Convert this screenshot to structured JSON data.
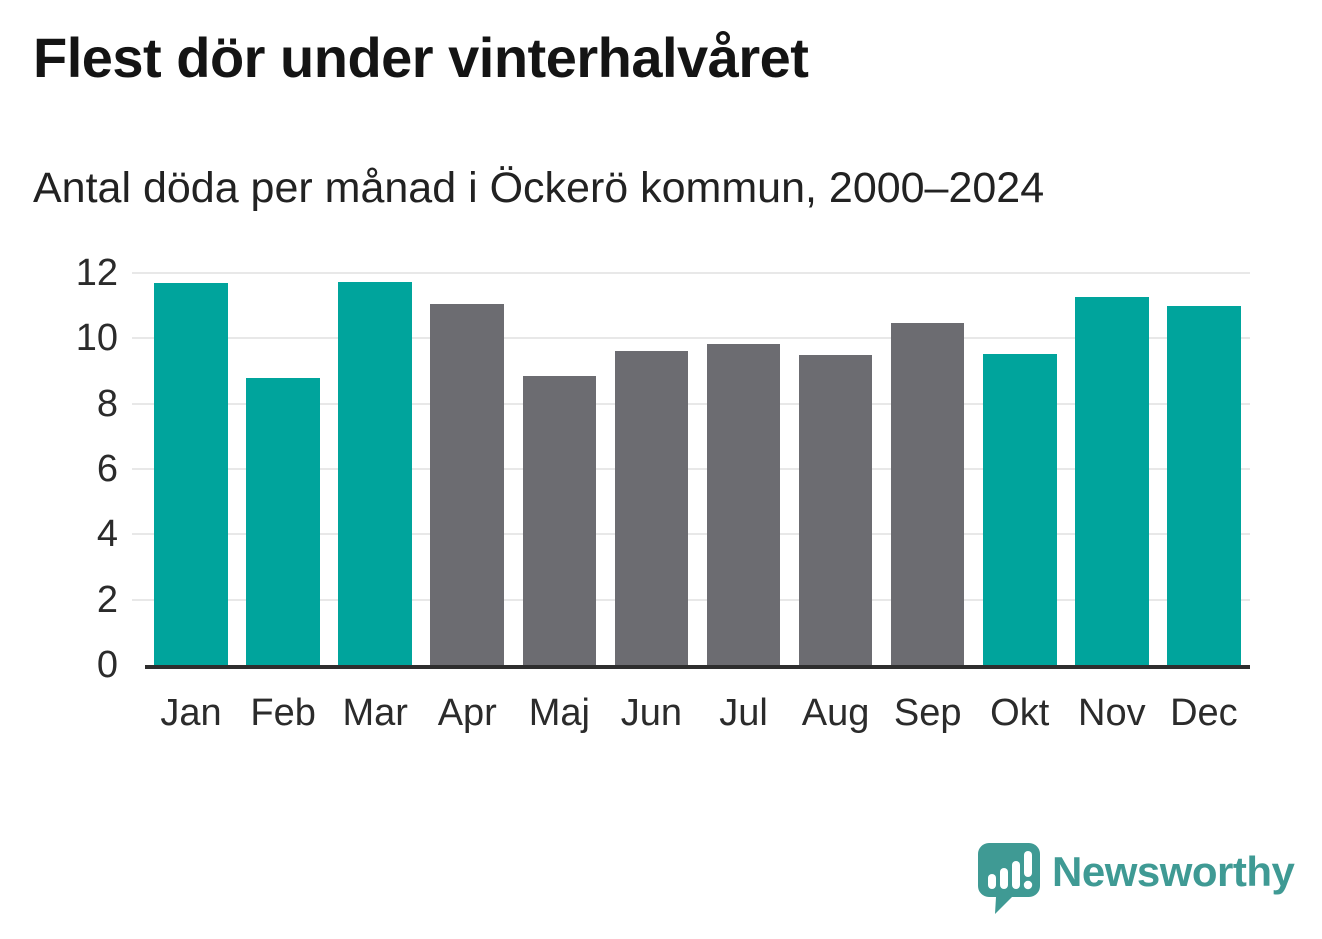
{
  "header": {
    "title": "Flest dör under vinterhalvåret",
    "subtitle": "Antal döda per månad i Öckerö kommun, 2000–2024"
  },
  "chart_data": {
    "type": "bar",
    "title": "Flest dör under vinterhalvåret",
    "subtitle": "Antal döda per månad i Öckerö kommun, 2000–2024",
    "categories": [
      "Jan",
      "Feb",
      "Mar",
      "Apr",
      "Maj",
      "Jun",
      "Jul",
      "Aug",
      "Sep",
      "Okt",
      "Nov",
      "Dec"
    ],
    "values": [
      11.68,
      8.8,
      11.72,
      11.04,
      8.84,
      9.6,
      9.84,
      9.48,
      10.48,
      9.52,
      11.28,
      11.0
    ],
    "highlighted": [
      true,
      true,
      true,
      false,
      false,
      false,
      false,
      false,
      false,
      true,
      true,
      true
    ],
    "colors": {
      "highlight": "#00a49c",
      "base": "#6c6c71",
      "gridline": "#e8e8e8",
      "axis_line": "#2e2e2e",
      "tick_text": "#2b2b2b"
    },
    "xlabel": "",
    "ylabel": "",
    "yticks": [
      0,
      2,
      4,
      6,
      8,
      10,
      12
    ],
    "ylim": [
      0,
      12
    ],
    "grid": true,
    "legend_position": "none"
  },
  "branding": {
    "wordmark": "Newsworthy",
    "color": "#3f9a94",
    "mark_icon": "newsworthy-logo-icon"
  }
}
